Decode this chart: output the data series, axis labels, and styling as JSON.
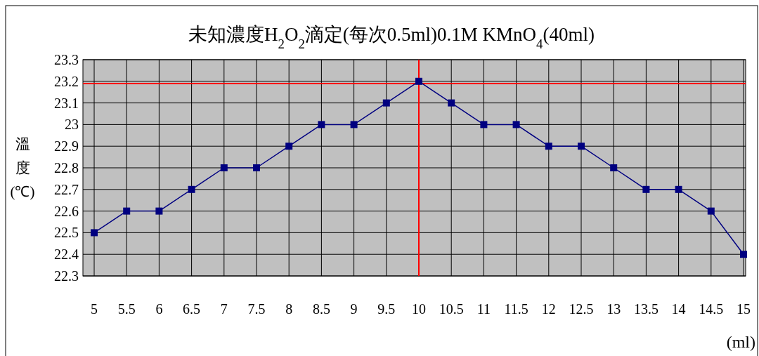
{
  "chart_data": {
    "type": "line",
    "title": "未知濃度H$_{2}$O$_{2}$滴定(每次0.5ml)0.1M KMnO$_{4}$(40ml)",
    "ylabel": "溫度(℃)",
    "xlabel": "(ml)",
    "categories": [
      "5",
      "5.5",
      "6",
      "6.5",
      "7",
      "7.5",
      "8",
      "8.5",
      "9",
      "9.5",
      "10",
      "10.5",
      "11",
      "11.5",
      "12",
      "12.5",
      "13",
      "13.5",
      "14",
      "14.5",
      "15"
    ],
    "series": [
      {
        "color": "#000080",
        "values": [
          22.5,
          22.6,
          22.6,
          22.7,
          22.8,
          22.8,
          22.9,
          23,
          23,
          23.1,
          23.2,
          23.1,
          23,
          23,
          22.9,
          22.9,
          22.8,
          22.7,
          22.7,
          22.6,
          22.4
        ]
      }
    ],
    "ylim": [
      22.3,
      23.3
    ],
    "yticks": [
      22.3,
      22.4,
      22.5,
      22.6,
      22.7,
      22.8,
      22.9,
      23,
      23.1,
      23.2,
      23.3
    ],
    "grid": true,
    "marker": "square",
    "ref_lines": [
      {
        "axis": "y",
        "value": 23.19,
        "color": "#ff0000"
      },
      {
        "axis": "x",
        "value": "10",
        "color": "#ff0000"
      }
    ]
  }
}
